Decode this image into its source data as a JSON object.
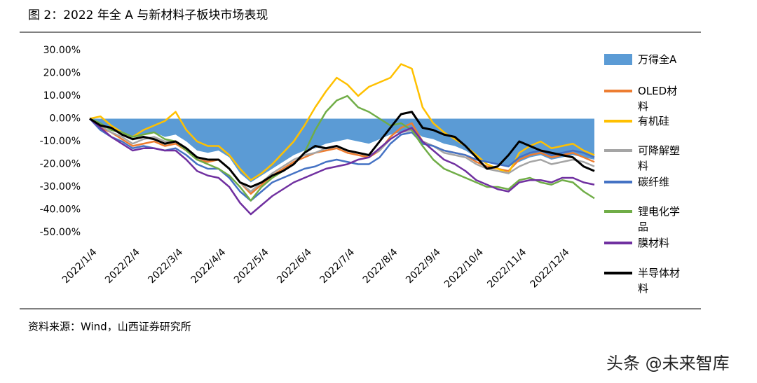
{
  "chart_data": {
    "type": "line",
    "title": "图 2：2022 年全 A 与新材料子板块市场表现",
    "source": "资料来源：Wind，山西证券研究所",
    "watermark": "头条 @未来智库",
    "categories": [
      "2022/1/4",
      null,
      null,
      null,
      "2022/2/4",
      null,
      null,
      null,
      "2022/3/4",
      null,
      null,
      null,
      "2022/4/4",
      null,
      null,
      null,
      "2022/5/4",
      null,
      null,
      null,
      "2022/6/4",
      null,
      null,
      null,
      "2022/7/4",
      null,
      null,
      null,
      "2022/8/4",
      null,
      null,
      null,
      "2022/9/4",
      null,
      null,
      null,
      "2022/10/4",
      null,
      null,
      null,
      "2022/11/4",
      null,
      null,
      null,
      "2022/12/4",
      null,
      null,
      null
    ],
    "ylim": [
      -50,
      30
    ],
    "yticks": [
      {
        "value": 30,
        "label": "30.00%"
      },
      {
        "value": 20,
        "label": "20.00%"
      },
      {
        "value": 10,
        "label": "10.00%"
      },
      {
        "value": 0,
        "label": "0.00%"
      },
      {
        "value": -10,
        "label": "-10.00%"
      },
      {
        "value": -20,
        "label": "-20.00%"
      },
      {
        "value": -30,
        "label": "-30.00%"
      },
      {
        "value": -40,
        "label": "-40.00%"
      },
      {
        "value": -50,
        "label": "-50.00%"
      }
    ],
    "grid": false,
    "legend": "right",
    "series": [
      {
        "name": "万得全A",
        "kind": "area",
        "color": "#5b9bd5",
        "values": [
          0,
          -3,
          -5,
          -7,
          -8,
          -7,
          -6,
          -8,
          -7,
          -10,
          -14,
          -15,
          -14,
          -17,
          -24,
          -28,
          -25,
          -22,
          -19,
          -16,
          -14,
          -13,
          -11,
          -10,
          -9,
          -10,
          -11,
          -9,
          -7,
          -6,
          -5,
          -8,
          -9,
          -11,
          -12,
          -14,
          -17,
          -19,
          -20,
          -21,
          -19,
          -17,
          -16,
          -18,
          -17,
          -16,
          -17,
          -18
        ]
      },
      {
        "name": "OLED材料",
        "color": "#ed7d31",
        "values": [
          0,
          -4,
          -6,
          -9,
          -12,
          -11,
          -10,
          -12,
          -11,
          -14,
          -18,
          -19,
          -18,
          -22,
          -28,
          -33,
          -29,
          -25,
          -22,
          -19,
          -17,
          -15,
          -14,
          -13,
          -15,
          -16,
          -17,
          -14,
          -8,
          -4,
          -2,
          -10,
          -12,
          -14,
          -15,
          -16,
          -19,
          -21,
          -22,
          -23,
          -18,
          -16,
          -15,
          -17,
          -16,
          -15,
          -17,
          -19
        ]
      },
      {
        "name": "有机硅",
        "color": "#ffc000",
        "values": [
          0,
          1,
          -3,
          -6,
          -8,
          -5,
          -3,
          -1,
          3,
          -5,
          -10,
          -12,
          -12,
          -16,
          -22,
          -27,
          -24,
          -20,
          -15,
          -10,
          -3,
          5,
          12,
          18,
          15,
          10,
          14,
          16,
          18,
          24,
          22,
          5,
          -2,
          -6,
          -9,
          -12,
          -16,
          -20,
          -22,
          -24,
          -15,
          -12,
          -10,
          -13,
          -12,
          -11,
          -14,
          -16
        ]
      },
      {
        "name": "可降解塑料",
        "color": "#a5a5a5",
        "values": [
          0,
          -3,
          -6,
          -8,
          -11,
          -9,
          -8,
          -10,
          -10,
          -13,
          -17,
          -18,
          -18,
          -22,
          -28,
          -32,
          -28,
          -24,
          -21,
          -18,
          -16,
          -15,
          -13,
          -12,
          -14,
          -15,
          -16,
          -14,
          -9,
          -6,
          -5,
          -10,
          -12,
          -15,
          -16,
          -17,
          -20,
          -22,
          -23,
          -24,
          -21,
          -19,
          -18,
          -20,
          -19,
          -18,
          -19,
          -21
        ]
      },
      {
        "name": "碳纤维",
        "color": "#4472c4",
        "values": [
          0,
          -5,
          -8,
          -10,
          -13,
          -12,
          -13,
          -14,
          -13,
          -16,
          -20,
          -22,
          -22,
          -26,
          -32,
          -36,
          -32,
          -28,
          -26,
          -24,
          -22,
          -21,
          -19,
          -18,
          -19,
          -20,
          -20,
          -17,
          -11,
          -7,
          -6,
          -11,
          -12,
          -14,
          -15,
          -16,
          -18,
          -19,
          -20,
          -21,
          -17,
          -15,
          -14,
          -16,
          -15,
          -14,
          -15,
          -17
        ]
      },
      {
        "name": "锂电化学品",
        "color": "#70ad47",
        "values": [
          0,
          -2,
          -5,
          -6,
          -8,
          -7,
          -6,
          -9,
          -10,
          -14,
          -18,
          -20,
          -22,
          -25,
          -30,
          -36,
          -30,
          -26,
          -23,
          -20,
          -15,
          -5,
          3,
          8,
          10,
          5,
          3,
          0,
          -3,
          -2,
          -5,
          -12,
          -18,
          -22,
          -24,
          -26,
          -28,
          -30,
          -30,
          -31,
          -27,
          -26,
          -28,
          -29,
          -27,
          -28,
          -32,
          -35
        ]
      },
      {
        "name": "膜材料",
        "color": "#7030a0",
        "values": [
          0,
          -4,
          -8,
          -11,
          -14,
          -13,
          -13,
          -14,
          -14,
          -18,
          -23,
          -25,
          -26,
          -30,
          -37,
          -42,
          -38,
          -34,
          -31,
          -28,
          -26,
          -24,
          -22,
          -21,
          -20,
          -18,
          -17,
          -13,
          -9,
          -6,
          -4,
          -10,
          -14,
          -18,
          -20,
          -23,
          -27,
          -29,
          -31,
          -32,
          -28,
          -27,
          -27,
          -28,
          -26,
          -26,
          -28,
          -29
        ]
      },
      {
        "name": "半导体材料",
        "color": "#000000",
        "values": [
          0,
          -3,
          -4,
          -7,
          -9,
          -8,
          -9,
          -11,
          -10,
          -13,
          -17,
          -18,
          -18,
          -22,
          -28,
          -30,
          -28,
          -25,
          -23,
          -20,
          -15,
          -12,
          -13,
          -12,
          -14,
          -15,
          -16,
          -10,
          -4,
          2,
          3,
          -4,
          -5,
          -7,
          -8,
          -12,
          -17,
          -22,
          -21,
          -16,
          -10,
          -12,
          -14,
          -15,
          -16,
          -17,
          -21,
          -23
        ]
      }
    ]
  }
}
